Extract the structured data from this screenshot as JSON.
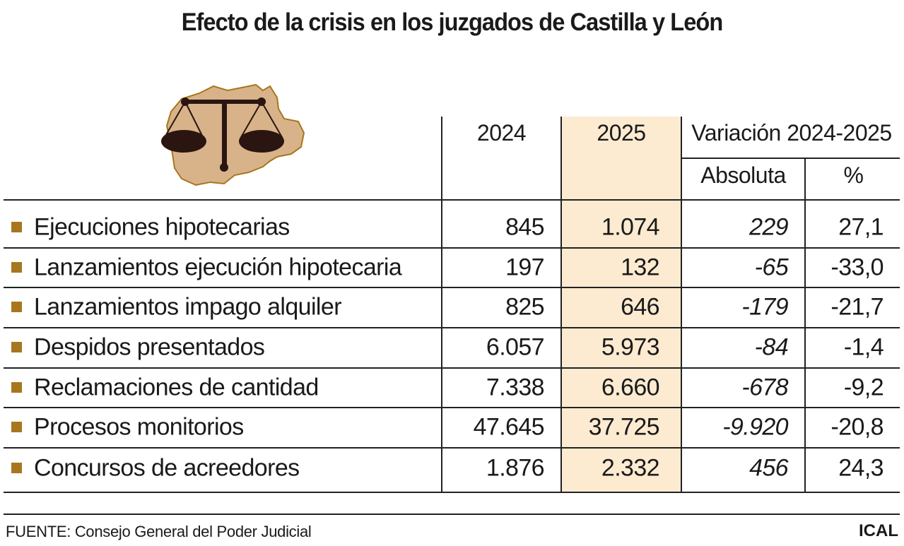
{
  "title": "Efecto de la crisis en los juzgados de Castilla y León",
  "logo": {
    "icon": "scales-of-justice-over-castilla-y-leon-map",
    "map_color": "#d8b38a",
    "scale_color": "#2a1510"
  },
  "accent_color": "#a8761f",
  "highlight_column_color": "#fcebd0",
  "headers": {
    "col_2024": "2024",
    "col_2025": "2025",
    "variation": "Variación 2024-2025",
    "absolute": "Absoluta",
    "percent": "%"
  },
  "chart_data": {
    "type": "table",
    "title": "Efecto de la crisis en los juzgados de Castilla y León",
    "columns": [
      "2024",
      "2025",
      "Variación 2024-2025 Absoluta",
      "Variación 2024-2025 %"
    ],
    "rows": [
      {
        "label": "Ejecuciones hipotecarias",
        "v2024": "845",
        "v2025": "1.074",
        "abs": "229",
        "pct": "27,1"
      },
      {
        "label": "Lanzamientos ejecución hipotecaria",
        "v2024": "197",
        "v2025": "132",
        "abs": "-65",
        "pct": "-33,0"
      },
      {
        "label": "Lanzamientos impago alquiler",
        "v2024": "825",
        "v2025": "646",
        "abs": "-179",
        "pct": "-21,7"
      },
      {
        "label": "Despidos presentados",
        "v2024": "6.057",
        "v2025": "5.973",
        "abs": "-84",
        "pct": "-1,4"
      },
      {
        "label": "Reclamaciones de cantidad",
        "v2024": "7.338",
        "v2025": "6.660",
        "abs": "-678",
        "pct": "-9,2"
      },
      {
        "label": "Procesos monitorios",
        "v2024": "47.645",
        "v2025": "37.725",
        "abs": "-9.920",
        "pct": "-20,8"
      },
      {
        "label": "Concursos de acreedores",
        "v2024": "1.876",
        "v2025": "2.332",
        "abs": "456",
        "pct": "24,3"
      }
    ]
  },
  "footer": {
    "source": "FUENTE: Consejo General del Poder Judicial",
    "brand": "ICAL"
  }
}
